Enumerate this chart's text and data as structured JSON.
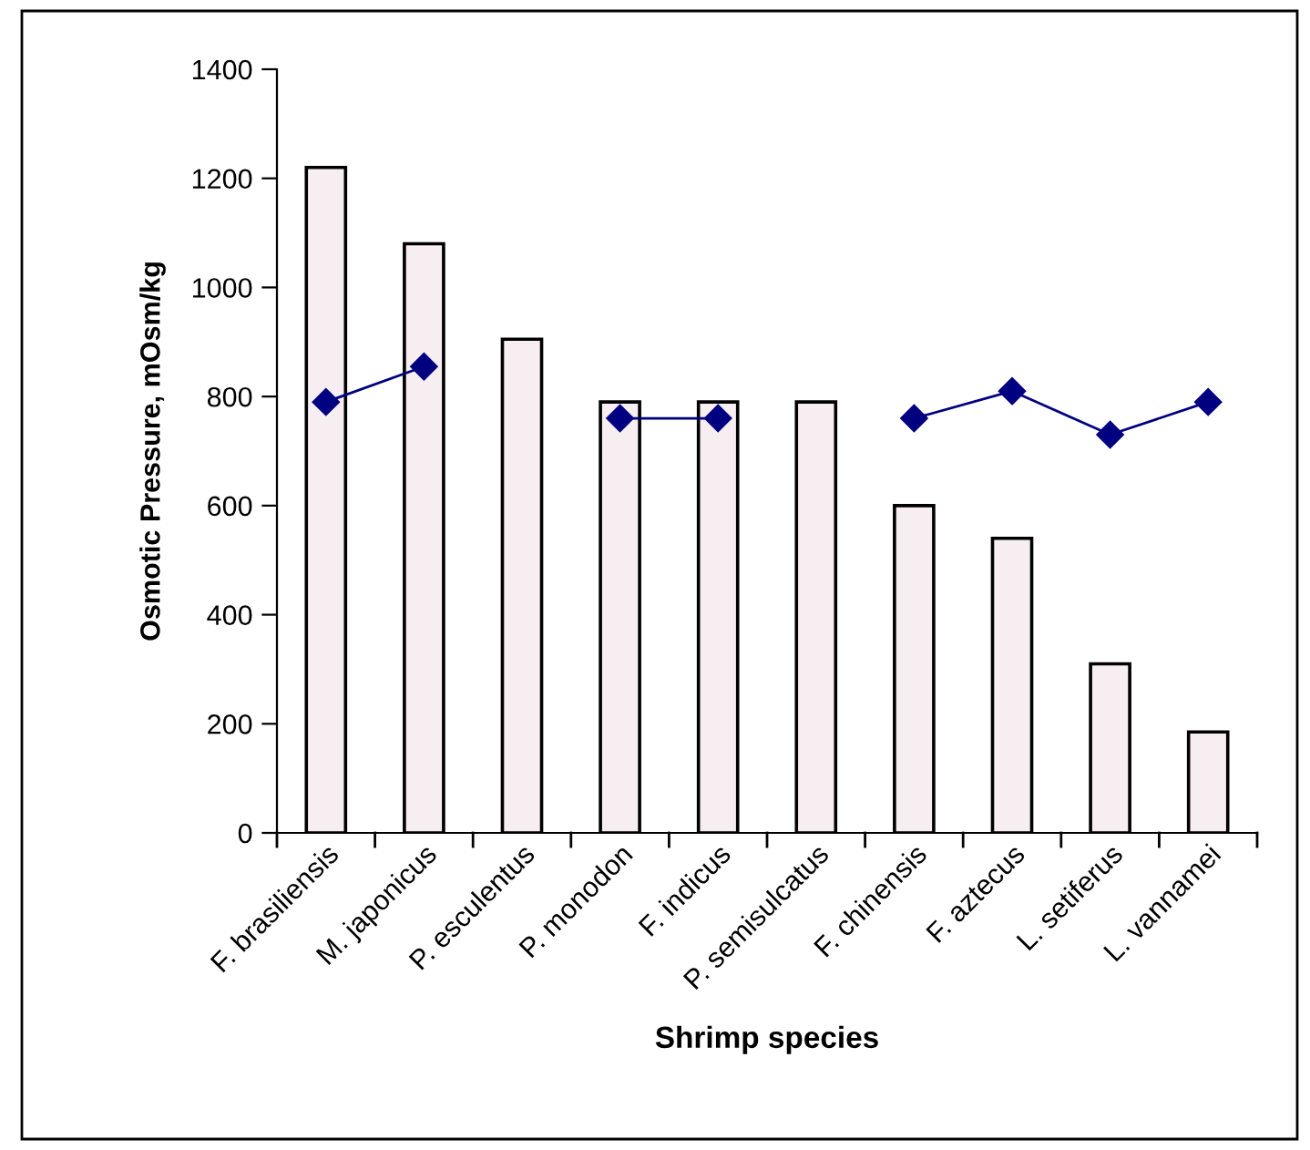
{
  "chart_data": {
    "type": "bar",
    "xlabel": "Shrimp species",
    "ylabel": "Osmotic Pressure, mOsm/kg",
    "categories": [
      "F. brasiliensis",
      "M. japonicus",
      "P. esculentus",
      "P. monodon",
      "F. indicus",
      "P. semisulcatus",
      "F. chinensis",
      "F. aztecus",
      "L. setiferus",
      "L. vannamei"
    ],
    "series": [
      {
        "color": "#f7eef2",
        "values": [
          1220,
          1080,
          905,
          790,
          790,
          790,
          600,
          540,
          310,
          185
        ]
      },
      {
        "type": "line",
        "color": "#000080",
        "marker": "diamond",
        "line_style": "solid",
        "values": [
          790,
          855,
          null,
          760,
          760,
          null,
          760,
          810,
          730,
          790
        ]
      }
    ],
    "ylim": [
      0,
      1400
    ],
    "yticks": [
      0,
      200,
      400,
      600,
      800,
      1000,
      1200,
      1400
    ],
    "grid": false,
    "legend": false
  }
}
